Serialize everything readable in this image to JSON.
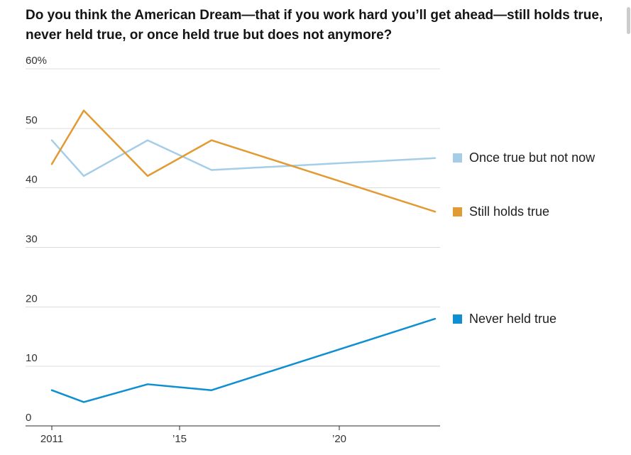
{
  "title": {
    "line1": "Do you think the American Dream—that if you work hard you’ll get ahead—still holds true,",
    "line2": "never held true, or once held true but does not anymore?"
  },
  "chart_data": {
    "type": "line",
    "x": [
      2011,
      2012,
      2014,
      2016,
      2023
    ],
    "series": [
      {
        "name": "Once true but not now",
        "color": "#a5cde8",
        "values": [
          48,
          42,
          48,
          43,
          45
        ]
      },
      {
        "name": "Still holds true",
        "color": "#e29a33",
        "values": [
          44,
          53,
          42,
          48,
          36
        ]
      },
      {
        "name": "Never held true",
        "color": "#0e8fd1",
        "values": [
          6,
          4,
          7,
          6,
          18
        ]
      }
    ],
    "ylim": [
      0,
      60
    ],
    "yticks": [
      {
        "value": 0,
        "label": "0"
      },
      {
        "value": 10,
        "label": "10"
      },
      {
        "value": 20,
        "label": "20"
      },
      {
        "value": 30,
        "label": "30"
      },
      {
        "value": 40,
        "label": "40"
      },
      {
        "value": 50,
        "label": "50"
      },
      {
        "value": 60,
        "label": "60%"
      }
    ],
    "xticks": [
      {
        "value": 2011,
        "label": "2011"
      },
      {
        "value": 2015,
        "label": "’15"
      },
      {
        "value": 2020,
        "label": "’20"
      }
    ],
    "grid": "horizontal",
    "legend_position": "right"
  },
  "colors": {
    "grid": "#dcdcdc",
    "axis": "#2b2b2b",
    "tick_text": "#333333"
  }
}
